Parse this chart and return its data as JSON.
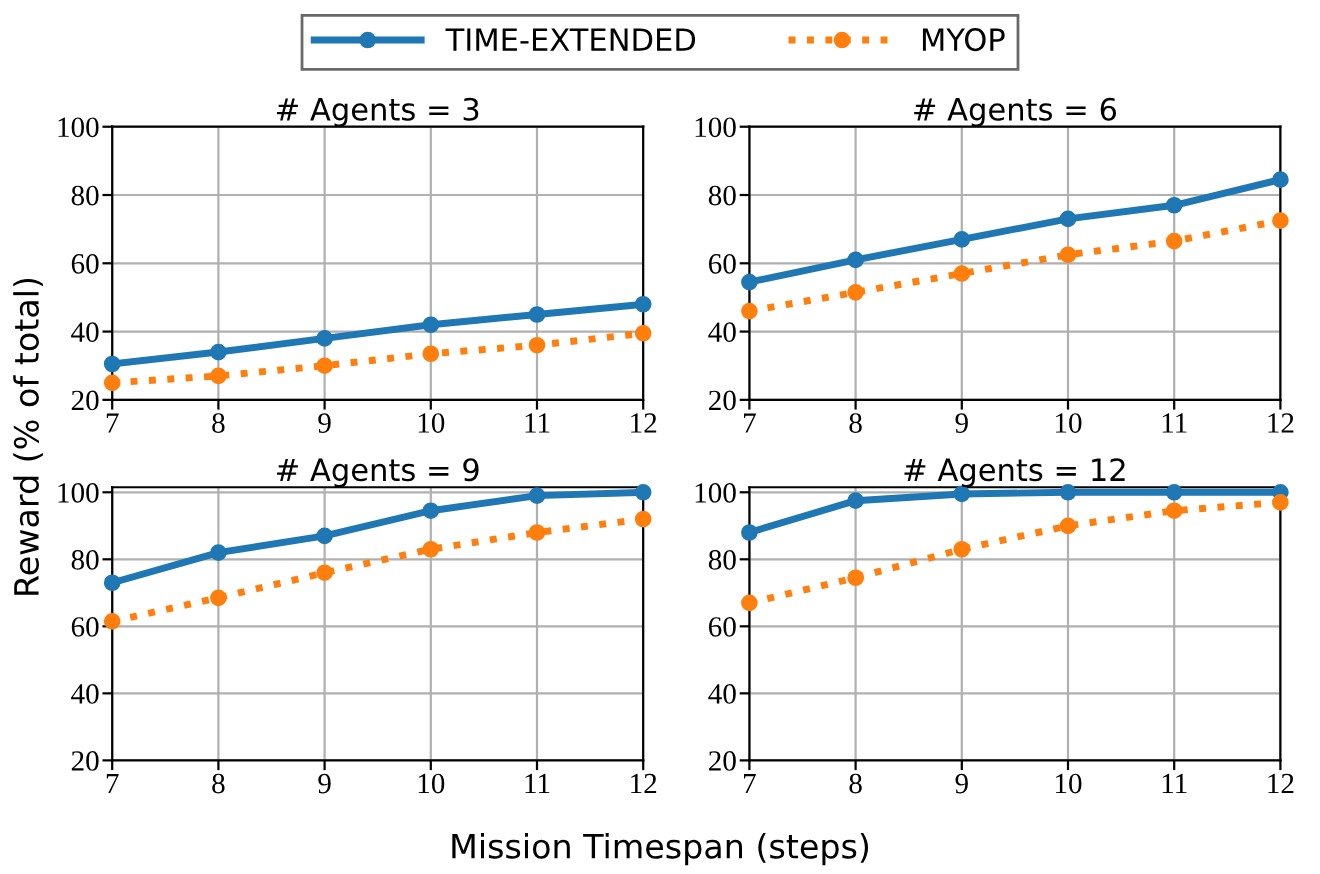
{
  "chart_data": [
    {
      "type": "line",
      "title": "# Agents = 3",
      "xlabel": "Mission Timespan (steps)",
      "ylabel": "Reward (% of total)",
      "legend": "top",
      "grid": true,
      "marker": "circle",
      "x": [
        7,
        8,
        9,
        10,
        11,
        12
      ],
      "xlim": [
        7,
        12
      ],
      "xticks": [
        7,
        8,
        9,
        10,
        11,
        12
      ],
      "ylim": [
        20,
        100
      ],
      "yticks": [
        20,
        40,
        60,
        80,
        100
      ],
      "series": [
        {
          "name": "TIME-EXTENDED",
          "color": "#1f77b4",
          "line_style": "solid",
          "values": [
            30.5,
            34,
            38,
            42,
            45,
            48
          ]
        },
        {
          "name": "MYOP",
          "color": "#ff7f0e",
          "line_style": "dotted",
          "values": [
            25,
            27,
            30,
            33.5,
            36,
            39.5
          ]
        }
      ]
    },
    {
      "type": "line",
      "title": "# Agents = 6",
      "grid": true,
      "marker": "circle",
      "x": [
        7,
        8,
        9,
        10,
        11,
        12
      ],
      "xlim": [
        7,
        12
      ],
      "xticks": [
        7,
        8,
        9,
        10,
        11,
        12
      ],
      "ylim": [
        20,
        100
      ],
      "yticks": [
        20,
        40,
        60,
        80,
        100
      ],
      "series": [
        {
          "color": "#1f77b4",
          "line_style": "solid",
          "values": [
            54.5,
            61,
            67,
            73,
            77,
            84.5
          ]
        },
        {
          "color": "#ff7f0e",
          "line_style": "dotted",
          "values": [
            46,
            51.5,
            57,
            62.5,
            66.5,
            72.5
          ]
        }
      ]
    },
    {
      "type": "line",
      "title": "# Agents = 9",
      "grid": true,
      "marker": "circle",
      "x": [
        7,
        8,
        9,
        10,
        11,
        12
      ],
      "xlim": [
        7,
        12
      ],
      "xticks": [
        7,
        8,
        9,
        10,
        11,
        12
      ],
      "ylim": [
        20,
        101.5
      ],
      "yticks": [
        20,
        40,
        60,
        80,
        100
      ],
      "series": [
        {
          "color": "#1f77b4",
          "line_style": "solid",
          "values": [
            73,
            82,
            87,
            94.5,
            99,
            100
          ]
        },
        {
          "color": "#ff7f0e",
          "line_style": "dotted",
          "values": [
            61.5,
            68.5,
            76,
            83,
            88,
            92
          ]
        }
      ]
    },
    {
      "type": "line",
      "title": "# Agents = 12",
      "grid": true,
      "marker": "circle",
      "x": [
        7,
        8,
        9,
        10,
        11,
        12
      ],
      "xlim": [
        7,
        12
      ],
      "xticks": [
        7,
        8,
        9,
        10,
        11,
        12
      ],
      "ylim": [
        20,
        101.5
      ],
      "yticks": [
        20,
        40,
        60,
        80,
        100
      ],
      "series": [
        {
          "color": "#1f77b4",
          "line_style": "solid",
          "values": [
            88,
            97.5,
            99.5,
            100,
            100,
            100
          ]
        },
        {
          "color": "#ff7f0e",
          "line_style": "dotted",
          "values": [
            67,
            74.5,
            83,
            90,
            94.5,
            97
          ]
        }
      ]
    }
  ]
}
